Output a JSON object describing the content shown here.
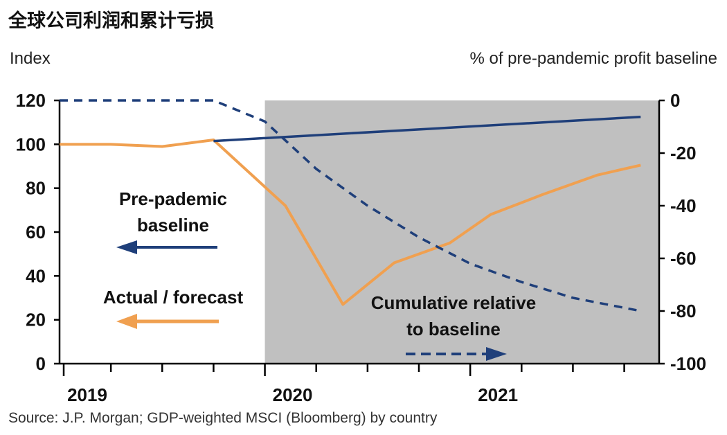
{
  "title": "全球公司利润和累计亏损",
  "source": "Source: J.P. Morgan; GDP-weighted MSCI (Bloomberg) by country",
  "chart_data": {
    "type": "line",
    "left_axis_label": "Index",
    "right_axis_label": "% of pre-pandemic profit baseline",
    "left_ylim": [
      0,
      120
    ],
    "left_ticks": [
      0,
      20,
      40,
      60,
      80,
      100,
      120
    ],
    "right_ylim": [
      -100,
      0
    ],
    "right_ticks": [
      0,
      -20,
      -40,
      -60,
      -80,
      -100
    ],
    "x_range": [
      2019.0,
      2021.92
    ],
    "year_labels": [
      {
        "x": 2019.0,
        "label": "2019"
      },
      {
        "x": 2020.0,
        "label": "2020"
      },
      {
        "x": 2021.0,
        "label": "2021"
      }
    ],
    "quarter_ticks": [
      2019.0,
      2019.25,
      2019.5,
      2019.75,
      2020.0,
      2020.25,
      2020.5,
      2020.75,
      2021.0,
      2021.25,
      2021.5,
      2021.75
    ],
    "shaded_region": {
      "x_start": 2020.0,
      "x_end": 2021.92,
      "color": "#c0c0c0"
    },
    "colors": {
      "baseline": "#1f3f7a",
      "actual": "#f0a050",
      "cumulative": "#1f3f7a",
      "axis": "#000000",
      "text": "#111111"
    },
    "series": [
      {
        "name": "Pre-pademic baseline",
        "axis": "left",
        "style": "solid",
        "x": [
          2019.75,
          2021.83
        ],
        "values": [
          101.5,
          112.5
        ]
      },
      {
        "name": "Actual / forecast",
        "axis": "left",
        "style": "solid",
        "x": [
          2019.0,
          2019.25,
          2019.5,
          2019.75,
          2020.1,
          2020.38,
          2020.63,
          2020.9,
          2021.1,
          2021.35,
          2021.62,
          2021.83
        ],
        "values": [
          100,
          100,
          99,
          102,
          72,
          27,
          46,
          55,
          68,
          77,
          86,
          90.5
        ]
      },
      {
        "name": "Cumulative relative to baseline",
        "axis": "right",
        "style": "dashed",
        "x": [
          2019.0,
          2019.25,
          2019.5,
          2019.75,
          2020.0,
          2020.25,
          2020.5,
          2020.75,
          2021.0,
          2021.25,
          2021.5,
          2021.83
        ],
        "values": [
          0,
          0,
          0,
          0,
          -8,
          -26,
          -40,
          -52,
          -62,
          -69,
          -75,
          -80
        ]
      }
    ],
    "annotations": [
      {
        "id": "baseline",
        "lines": [
          "Pre-pademic",
          "baseline"
        ],
        "arrow": "left"
      },
      {
        "id": "actual",
        "lines": [
          "Actual / forecast"
        ],
        "arrow": "left"
      },
      {
        "id": "cumulative",
        "lines": [
          "Cumulative relative",
          "to baseline"
        ],
        "arrow": "right"
      }
    ]
  }
}
